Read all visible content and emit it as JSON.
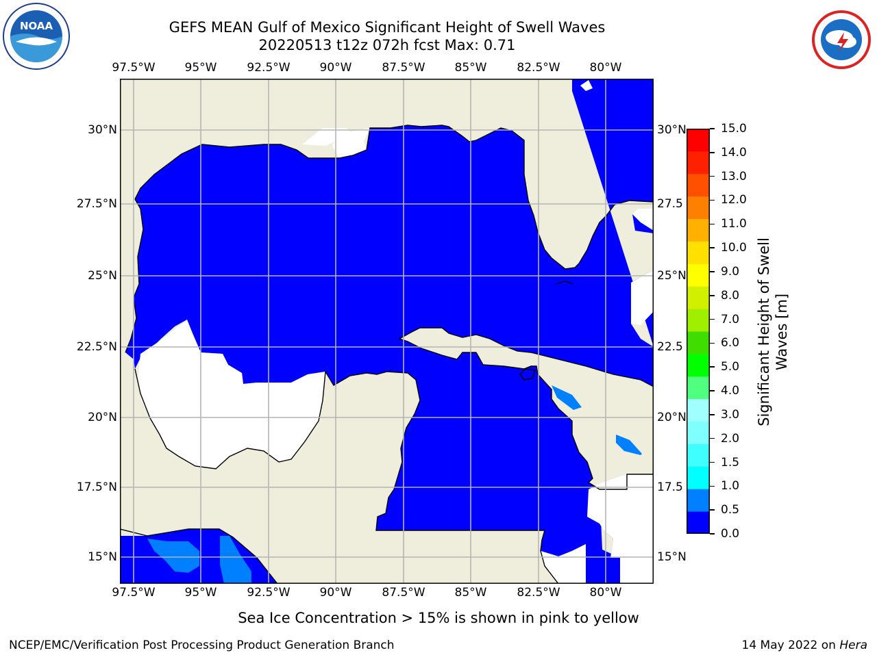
{
  "header": {
    "title_line1": "GEFS MEAN Gulf of Mexico Significant Height of Swell Waves",
    "title_line2": "20220513 t12z 072h fcst   Max: 0.71"
  },
  "map": {
    "lon_labels": [
      "97.5°W",
      "95°W",
      "92.5°W",
      "90°W",
      "87.5°W",
      "85°W",
      "82.5°W",
      "80°W"
    ],
    "lat_labels": [
      "30°N",
      "27.5°N",
      "25°N",
      "22.5°N",
      "20°N",
      "17.5°N",
      "15°N"
    ],
    "right_lat_labels": [
      "30°N",
      "27.5",
      "25°N",
      "22.5",
      "20°N",
      "17.5",
      "15°N"
    ],
    "colors": {
      "ocean": "#0000ff",
      "land": "#efeedd",
      "no_data": "#ffffff",
      "patch": "#0080ff",
      "grid": "#b4b4b4"
    }
  },
  "colorbar": {
    "title": "Significant Height of Swell Waves [m]",
    "labels": [
      "0.0",
      "0.5",
      "1.0",
      "1.5",
      "2.0",
      "3.0",
      "4.0",
      "5.0",
      "6.0",
      "7.0",
      "8.0",
      "9.0",
      "10.0",
      "11.0",
      "12.0",
      "13.0",
      "14.0",
      "15.0"
    ],
    "colors": [
      "#0000ff",
      "#0080ff",
      "#00ffff",
      "#40ffff",
      "#80ffff",
      "#a0ffff",
      "#50ff80",
      "#00ff00",
      "#40dd00",
      "#a0ee00",
      "#d0f000",
      "#ffff00",
      "#ffe000",
      "#ffb000",
      "#ff8000",
      "#ff5000",
      "#ff2000",
      "#ff0000"
    ]
  },
  "footer": {
    "note": "Sea Ice Concentration > 15% is shown in pink to yellow",
    "credit": "NCEP/EMC/Verification Post Processing Product Generation Branch",
    "date": "14 May 2022 on",
    "system": "Hera"
  },
  "logos": {
    "left": "noaa-logo",
    "right": "nws-logo",
    "noaa_text": "NOAA"
  }
}
